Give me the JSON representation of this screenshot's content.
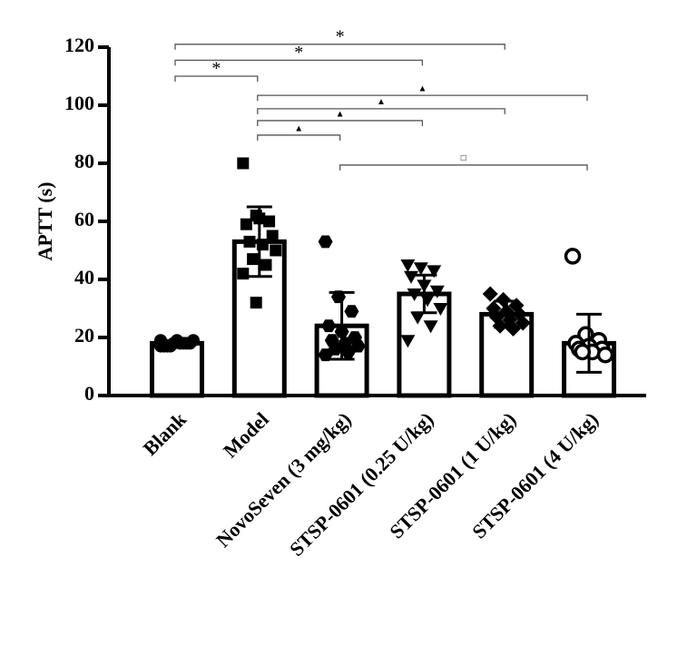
{
  "chart_data": {
    "type": "bar",
    "y_label": "APTT (s)",
    "categories": [
      "Blank",
      "Model",
      "NovoSeven (3 mg/kg)",
      "STSP-0601 (0.25 U/kg)",
      "STSP-0601 (1 U/kg)",
      "STSP-0601 (4 U/kg)"
    ],
    "values": [
      18,
      53,
      24,
      35,
      28,
      18
    ],
    "errors": [
      1,
      12,
      11.5,
      6.5,
      4.5,
      10
    ],
    "points": [
      [
        19,
        18,
        18,
        17,
        19,
        18,
        17,
        18,
        19,
        17,
        18,
        17
      ],
      [
        80,
        62,
        60,
        59,
        61,
        55,
        53,
        52,
        50,
        47,
        45,
        42,
        32
      ],
      [
        53,
        34,
        29,
        24,
        22,
        20,
        19,
        18,
        17,
        16,
        15,
        14
      ],
      [
        45,
        44,
        43,
        41,
        38,
        36,
        35,
        33,
        30,
        27,
        24,
        19
      ],
      [
        35,
        33,
        31,
        30,
        29,
        28,
        27,
        26,
        25,
        24,
        23
      ],
      [
        48,
        21,
        19,
        18,
        17,
        16,
        16,
        15,
        14,
        15
      ]
    ],
    "markers": [
      "circle",
      "square",
      "hexagon",
      "triangle-down",
      "diamond",
      "open-circle"
    ],
    "color": "#000000",
    "ylim": [
      0,
      120
    ],
    "yticks": [
      0,
      20,
      40,
      60,
      80,
      100,
      120
    ],
    "annotations": [
      {
        "text": "*",
        "from": 0,
        "to": 1
      },
      {
        "text": "*",
        "from": 0,
        "to": 3
      },
      {
        "text": "*",
        "from": 0,
        "to": 4
      },
      {
        "text": "▲",
        "from": 1,
        "to": 2
      },
      {
        "text": "▲",
        "from": 1,
        "to": 3
      },
      {
        "text": "▲",
        "from": 1,
        "to": 4
      },
      {
        "text": "▲",
        "from": 1,
        "to": 5
      },
      {
        "text": "□",
        "from": 2,
        "to": 5
      }
    ]
  }
}
